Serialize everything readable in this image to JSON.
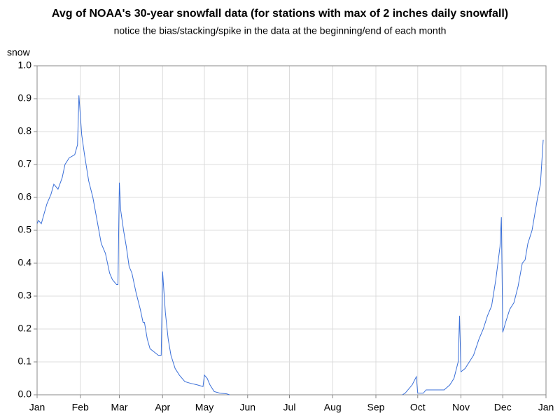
{
  "chart_data": {
    "type": "line",
    "title": "Avg of NOAA's 30-year snowfall data (for stations with max of 2 inches daily snowfall)",
    "subtitle": "notice the bias/stacking/spike in the data at the beginning/end of each month",
    "y_label": "snow",
    "xlim": [
      0,
      365
    ],
    "xticks": [
      {
        "value": 0,
        "label": "Jan"
      },
      {
        "value": 31,
        "label": "Feb"
      },
      {
        "value": 59,
        "label": "Mar"
      },
      {
        "value": 90,
        "label": "Apr"
      },
      {
        "value": 120,
        "label": "May"
      },
      {
        "value": 151,
        "label": "Jun"
      },
      {
        "value": 181,
        "label": "Jul"
      },
      {
        "value": 212,
        "label": "Aug"
      },
      {
        "value": 243,
        "label": "Sep"
      },
      {
        "value": 273,
        "label": "Oct"
      },
      {
        "value": 304,
        "label": "Nov"
      },
      {
        "value": 334,
        "label": "Dec"
      },
      {
        "value": 365,
        "label": "Jan"
      }
    ],
    "ylim": [
      0,
      1
    ],
    "yticks": [
      {
        "value": 0,
        "label": "0.0"
      },
      0.1,
      0.2,
      0.3,
      0.4,
      0.5,
      0.6,
      0.7,
      0.8,
      0.9,
      {
        "value": 1,
        "label": "1.0"
      }
    ],
    "grid": true,
    "series": [
      {
        "name": "snow",
        "color": "#3a6fd8",
        "x": [
          0,
          1,
          3,
          5,
          7,
          10,
          12,
          15,
          18,
          20,
          23,
          27,
          29,
          30,
          31,
          32,
          34,
          37,
          40,
          43,
          46,
          49,
          52,
          54,
          57,
          58,
          59,
          60,
          62,
          64,
          66,
          68,
          71,
          74,
          76,
          77,
          79,
          81,
          84,
          87,
          89,
          90,
          92,
          94,
          96,
          99,
          102,
          106,
          110,
          115,
          119,
          120,
          122,
          124,
          127,
          131,
          136,
          138,
          200,
          262,
          264,
          267,
          269,
          272,
          273,
          277,
          279,
          292,
          296,
          299,
          302,
          303,
          304,
          307,
          310,
          313,
          317,
          320,
          323,
          326,
          329,
          332,
          333,
          334,
          336,
          339,
          342,
          345,
          348,
          350,
          352,
          355,
          359,
          361,
          363
        ],
        "values": [
          0.52,
          0.53,
          0.52,
          0.55,
          0.58,
          0.61,
          0.64,
          0.625,
          0.66,
          0.7,
          0.72,
          0.73,
          0.76,
          0.91,
          0.85,
          0.79,
          0.73,
          0.65,
          0.6,
          0.53,
          0.46,
          0.43,
          0.37,
          0.35,
          0.335,
          0.335,
          0.645,
          0.56,
          0.5,
          0.45,
          0.39,
          0.37,
          0.31,
          0.26,
          0.22,
          0.22,
          0.17,
          0.14,
          0.13,
          0.12,
          0.12,
          0.375,
          0.25,
          0.17,
          0.12,
          0.08,
          0.06,
          0.04,
          0.035,
          0.03,
          0.025,
          0.06,
          0.05,
          0.03,
          0.01,
          0.005,
          0.003,
          0,
          null,
          0,
          0.005,
          0.02,
          0.03,
          0.055,
          0.005,
          0.005,
          0.015,
          0.015,
          0.03,
          0.05,
          0.1,
          0.24,
          0.07,
          0.08,
          0.1,
          0.12,
          0.17,
          0.2,
          0.24,
          0.27,
          0.35,
          0.45,
          0.54,
          0.19,
          0.22,
          0.26,
          0.28,
          0.33,
          0.4,
          0.41,
          0.46,
          0.5,
          0.6,
          0.64,
          0.775
        ]
      }
    ]
  }
}
